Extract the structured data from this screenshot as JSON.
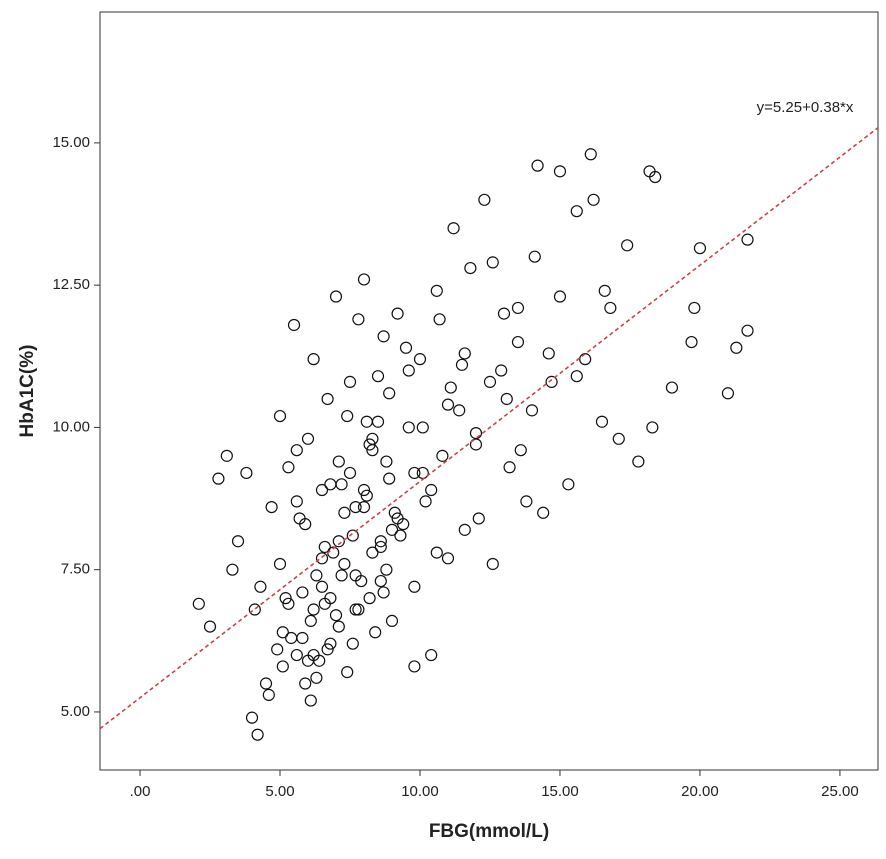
{
  "chart_data": {
    "type": "scatter",
    "xlabel": "FBG(mmol/L)",
    "ylabel": "HbA1C(%)",
    "annotation": "y=5.25+0.38*x",
    "trendline": {
      "intercept": 5.25,
      "slope": 0.38,
      "color": "#d0404a"
    },
    "color": "#111111",
    "xlim": [
      -1.43,
      26.36
    ],
    "ylim": [
      3.98,
      17.3
    ],
    "xticks": [
      {
        "value": 0,
        "label": ".00"
      },
      {
        "value": 5,
        "label": "5.00"
      },
      {
        "value": 10,
        "label": "10.00"
      },
      {
        "value": 15,
        "label": "15.00"
      },
      {
        "value": 20,
        "label": "20.00"
      },
      {
        "value": 25,
        "label": "25.00"
      }
    ],
    "yticks": [
      {
        "value": 5,
        "label": "5.00"
      },
      {
        "value": 7.5,
        "label": "7.50"
      },
      {
        "value": 10,
        "label": "10.00"
      },
      {
        "value": 12.5,
        "label": "12.50"
      },
      {
        "value": 15,
        "label": "15.00"
      }
    ],
    "x": [
      2.1,
      2.5,
      2.8,
      3.1,
      4.0,
      4.2,
      14.2,
      16.1,
      15.0,
      18.2,
      18.4,
      21.7,
      20.0,
      21.0,
      21.7,
      21.3,
      19.7,
      19.8,
      19.0,
      17.8,
      18.3,
      3.3,
      3.5,
      3.8,
      4.1,
      4.3,
      4.5,
      4.7,
      4.9,
      5.0,
      5.1,
      5.2,
      5.3,
      5.4,
      5.5,
      5.6,
      5.7,
      5.8,
      5.9,
      6.0,
      6.1,
      6.2,
      6.3,
      6.4,
      6.5,
      6.6,
      6.7,
      6.8,
      6.9,
      7.0,
      7.1,
      7.2,
      7.3,
      7.4,
      7.5,
      7.6,
      7.7,
      7.8,
      7.9,
      8.0,
      8.1,
      8.2,
      8.3,
      8.4,
      8.5,
      8.6,
      8.7,
      8.8,
      8.9,
      9.0,
      9.2,
      9.4,
      9.6,
      9.8,
      10.0,
      10.2,
      10.4,
      10.6,
      10.8,
      11.0,
      11.2,
      11.4,
      11.6,
      11.8,
      12.0,
      12.3,
      12.6,
      12.9,
      13.2,
      13.5,
      13.8,
      14.1,
      14.4,
      14.7,
      15.0,
      15.3,
      15.6,
      15.9,
      16.2,
      16.5,
      16.8,
      17.1,
      17.4,
      5.0,
      5.3,
      5.6,
      5.9,
      6.2,
      6.5,
      6.8,
      7.1,
      7.4,
      7.7,
      8.0,
      8.3,
      8.6,
      8.9,
      9.2,
      9.5,
      9.8,
      10.1,
      10.4,
      10.7,
      11.0,
      11.5,
      12.0,
      12.5,
      13.0,
      13.5,
      14.0,
      4.6,
      5.1,
      5.6,
      6.1,
      6.6,
      7.1,
      7.6,
      8.1,
      8.6,
      9.1,
      9.6,
      10.1,
      10.6,
      11.1,
      11.6,
      12.1,
      12.6,
      13.1,
      13.6,
      14.6,
      15.6,
      16.6,
      5.8,
      6.3,
      6.8,
      7.3,
      7.8,
      8.3,
      8.8,
      9.3,
      9.8,
      6.0,
      6.5,
      7.0,
      7.5,
      8.0,
      8.5,
      9.0,
      6.2,
      6.7,
      7.2,
      7.7,
      8.2,
      8.7
    ],
    "values": [
      6.9,
      6.5,
      9.1,
      9.5,
      4.9,
      4.6,
      14.6,
      14.8,
      14.5,
      14.5,
      14.4,
      13.3,
      13.15,
      10.6,
      11.7,
      11.4,
      11.5,
      12.1,
      10.7,
      9.4,
      10.0,
      7.5,
      8.0,
      9.2,
      6.8,
      7.2,
      5.5,
      8.6,
      6.1,
      10.2,
      5.8,
      7.0,
      9.3,
      6.3,
      11.8,
      6.0,
      8.4,
      7.1,
      5.5,
      9.8,
      6.6,
      11.2,
      7.4,
      5.9,
      8.9,
      6.9,
      10.5,
      6.2,
      7.8,
      12.3,
      6.5,
      9.0,
      7.6,
      5.7,
      10.8,
      8.1,
      6.8,
      11.9,
      7.3,
      12.6,
      8.8,
      7.0,
      9.6,
      6.4,
      10.9,
      8.0,
      11.6,
      7.5,
      9.1,
      6.6,
      12.0,
      8.3,
      10.0,
      5.8,
      11.2,
      8.7,
      6.0,
      12.4,
      9.5,
      7.7,
      13.5,
      10.3,
      8.2,
      12.8,
      9.9,
      14.0,
      7.6,
      11.0,
      9.3,
      12.1,
      8.7,
      13.0,
      8.5,
      10.8,
      12.3,
      9.0,
      13.8,
      11.2,
      14.0,
      10.1,
      12.1,
      9.8,
      13.2,
      7.6,
      6.9,
      9.6,
      8.3,
      6.0,
      7.2,
      9.0,
      8.0,
      10.2,
      7.4,
      8.6,
      9.8,
      7.9,
      10.6,
      8.4,
      11.4,
      9.2,
      10.0,
      8.9,
      11.9,
      10.4,
      11.1,
      9.7,
      10.8,
      12.0,
      11.5,
      10.3,
      5.3,
      6.4,
      8.7,
      5.2,
      7.9,
      9.4,
      6.2,
      10.1,
      7.3,
      8.5,
      11.0,
      9.2,
      7.8,
      10.7,
      11.3,
      8.4,
      12.9,
      10.5,
      9.6,
      11.3,
      10.9,
      12.4,
      6.3,
      5.6,
      7.0,
      8.5,
      6.8,
      7.8,
      9.4,
      8.1,
      7.2,
      5.9,
      7.7,
      6.7,
      9.2,
      8.9,
      10.1,
      8.2,
      6.8,
      6.1,
      7.4,
      8.6,
      9.7,
      7.1
    ]
  }
}
